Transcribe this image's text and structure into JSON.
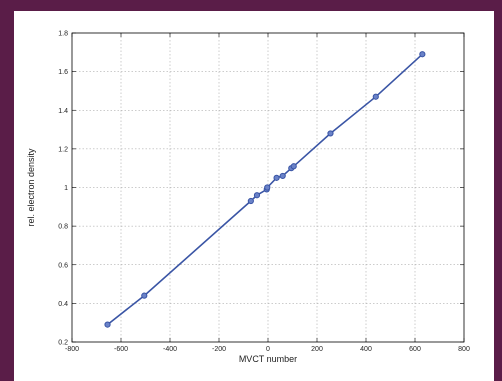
{
  "chart_data": {
    "type": "line",
    "title": "",
    "xlabel": "MVCT number",
    "ylabel": "rel. electron density",
    "xlim": [
      -800,
      800
    ],
    "ylim": [
      0.2,
      1.8
    ],
    "xticks": [
      -800,
      -600,
      -400,
      -200,
      0,
      200,
      400,
      600,
      800
    ],
    "yticks": [
      0.2,
      0.4,
      0.6,
      0.8,
      1,
      1.2,
      1.4,
      1.6,
      1.8
    ],
    "xtick_labels": [
      "-800",
      "-600",
      "-400",
      "-200",
      "0",
      "200",
      "400",
      "600",
      "800"
    ],
    "ytick_labels": [
      "0.2",
      "0.4",
      "0.6",
      "0.8",
      "1",
      "1.2",
      "1.4",
      "1.6",
      "1.8"
    ],
    "grid": true,
    "line_color": "#3a55a5",
    "series": [
      {
        "x": [
          -655,
          -505,
          -70,
          -45,
          -5,
          -3,
          35,
          60,
          95,
          105,
          255,
          440,
          630
        ],
        "y": [
          0.29,
          0.44,
          0.93,
          0.96,
          0.99,
          1.0,
          1.05,
          1.06,
          1.1,
          1.11,
          1.28,
          1.47,
          1.69
        ]
      }
    ]
  }
}
